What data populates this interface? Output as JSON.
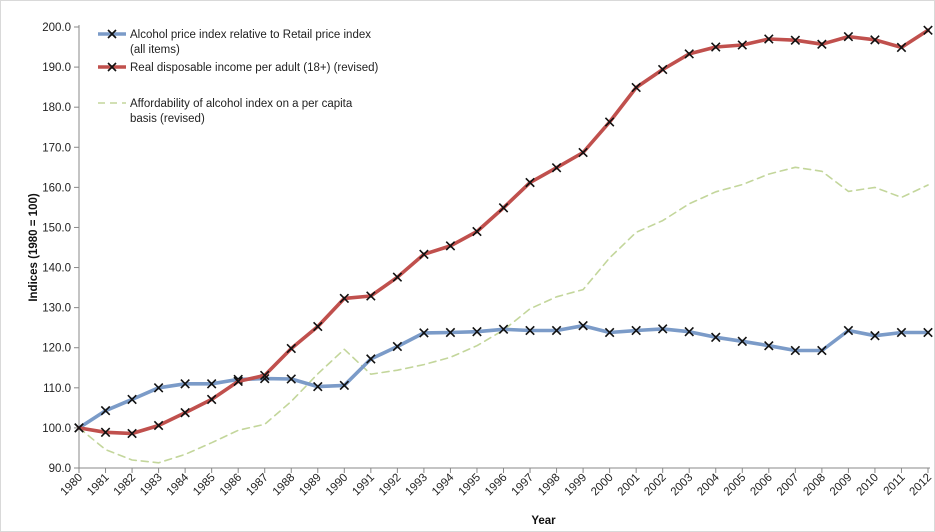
{
  "chart_data": {
    "type": "line",
    "xlabel": "Year",
    "ylabel": "Indices (1980 = 100)",
    "ylim": [
      90,
      200
    ],
    "yticks": [
      "90.0",
      "100.0",
      "110.0",
      "120.0",
      "130.0",
      "140.0",
      "150.0",
      "160.0",
      "170.0",
      "180.0",
      "190.0",
      "200.0"
    ],
    "grid": false,
    "legend_position": "top-left",
    "x": [
      "1980",
      "1981",
      "1982",
      "1983",
      "1984",
      "1985",
      "1986",
      "1987",
      "1988",
      "1989",
      "1990",
      "1991",
      "1992",
      "1993",
      "1994",
      "1995",
      "1996",
      "1997",
      "1998",
      "1999",
      "2000",
      "2001",
      "2002",
      "2003",
      "2004",
      "2005",
      "2006",
      "2007",
      "2008",
      "2009",
      "2010",
      "2011",
      "2012"
    ],
    "series": [
      {
        "name": "Alcohol price index relative to Retail price index (all items)",
        "legend_lines": [
          "Alcohol price index relative to Retail price index",
          "(all items)"
        ],
        "color": "#7b9bc8",
        "marker": "x",
        "dashed": false,
        "values": [
          100.0,
          104.3,
          107.1,
          110.0,
          111.0,
          111.0,
          112.1,
          112.3,
          112.2,
          110.3,
          110.6,
          117.2,
          120.3,
          123.7,
          123.8,
          124.0,
          124.6,
          124.3,
          124.3,
          125.5,
          123.8,
          124.3,
          124.7,
          124.0,
          122.6,
          121.6,
          120.5,
          119.3,
          119.3,
          124.3,
          123.0,
          123.8,
          123.8
        ]
      },
      {
        "name": "Real disposable income per adult (18+) (revised)",
        "legend_lines": [
          "Real disposable income per adult (18+) (revised)"
        ],
        "color": "#c0504d",
        "marker": "x",
        "dashed": false,
        "values": [
          100.0,
          98.9,
          98.6,
          100.6,
          103.8,
          107.1,
          111.6,
          113.1,
          119.8,
          125.3,
          132.3,
          132.9,
          137.6,
          143.3,
          145.4,
          149.0,
          154.9,
          161.2,
          164.9,
          168.7,
          176.3,
          184.9,
          189.4,
          193.3,
          195.0,
          195.5,
          197.0,
          196.7,
          195.7,
          197.6,
          196.8,
          194.9,
          199.2
        ]
      },
      {
        "name": "Affordability of alcohol index on a per capita basis (revised)",
        "legend_lines": [
          "Affordability of alcohol index on a per capita",
          "basis (revised)"
        ],
        "color": "#c3d69b",
        "marker": "none",
        "dashed": true,
        "values": [
          100.0,
          94.6,
          92.0,
          91.3,
          93.4,
          96.3,
          99.4,
          100.9,
          106.6,
          113.5,
          119.6,
          113.4,
          114.4,
          115.8,
          117.6,
          120.5,
          124.4,
          129.7,
          132.7,
          134.5,
          142.4,
          148.8,
          151.7,
          155.9,
          158.9,
          160.7,
          163.3,
          165.0,
          164.0,
          159.0,
          160.0,
          157.5,
          160.6
        ]
      }
    ]
  }
}
